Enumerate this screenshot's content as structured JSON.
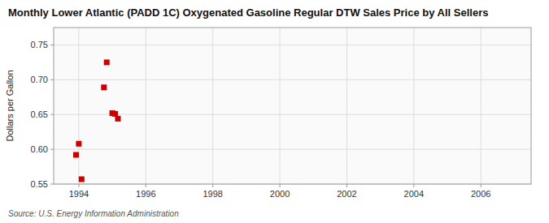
{
  "chart_data": {
    "type": "scatter",
    "title": "Monthly Lower Atlantic (PADD 1C) Oxygenated Gasoline Regular DTW Sales Price by All Sellers",
    "ylabel": "Dollars per Gallon",
    "source": "Source: U.S. Energy Information Administration",
    "x": [
      1993.917,
      1994.0,
      1994.083,
      1994.75,
      1994.833,
      1995.0,
      1995.083,
      1995.167
    ],
    "values": [
      0.592,
      0.608,
      0.557,
      0.689,
      0.725,
      0.652,
      0.651,
      0.644
    ],
    "color": "#cc0000",
    "marker": "square",
    "xlim": [
      1993.25,
      2007.5
    ],
    "ylim": [
      0.55,
      0.775
    ],
    "xticks": [
      1994,
      1996,
      1998,
      2000,
      2002,
      2004,
      2006
    ],
    "yticks": [
      0.55,
      {
        "value": 0.6,
        "label": "0.60"
      },
      0.65,
      {
        "value": 0.7,
        "label": "0.70"
      },
      0.75
    ],
    "grid": true
  }
}
